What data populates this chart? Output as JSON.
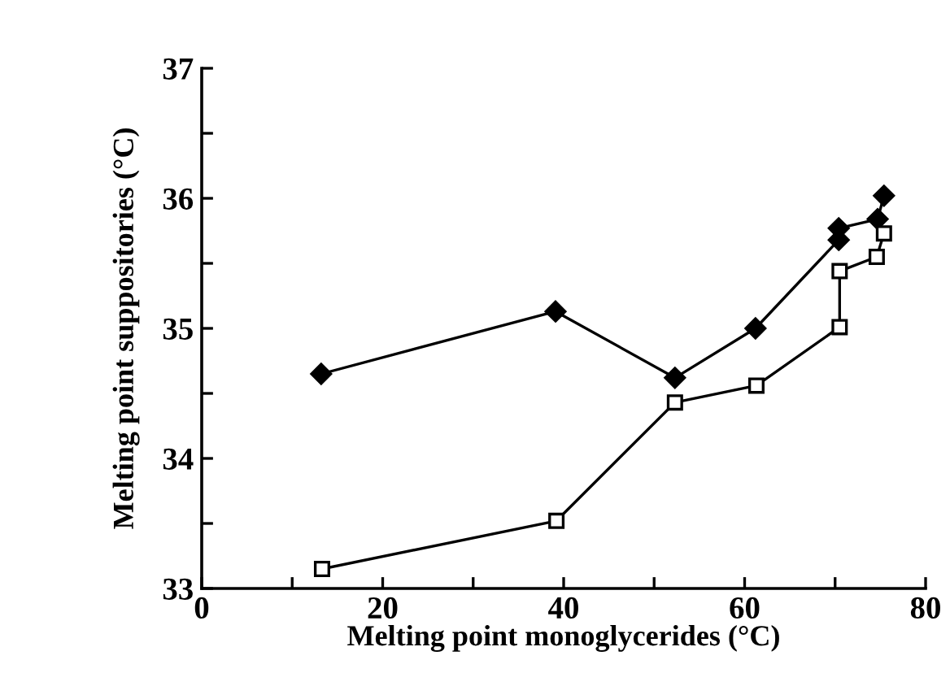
{
  "chart_data": {
    "type": "line",
    "xlabel": "Melting point monoglycerides (°C)",
    "ylabel": "Melting point suppositories (°C)",
    "xlim": [
      0,
      80
    ],
    "ylim": [
      33,
      37
    ],
    "xticks": [
      0,
      {
        "value": 10,
        "label": null
      },
      20,
      {
        "value": 30,
        "label": null
      },
      40,
      {
        "value": 50,
        "label": null
      },
      60,
      {
        "value": 70,
        "label": null
      },
      80
    ],
    "yticks": [
      33,
      {
        "value": 33.5,
        "label": null
      },
      34,
      {
        "value": 34.5,
        "label": null
      },
      35,
      {
        "value": 35.5,
        "label": null
      },
      36,
      {
        "value": 36.5,
        "label": null
      },
      37
    ],
    "grid": false,
    "line_style": "solid",
    "series": [
      {
        "color": "#000000",
        "marker": "diamond",
        "x": [
          13.2,
          39.1,
          52.3,
          61.2,
          70.4,
          70.4,
          74.7,
          75.4
        ],
        "values": [
          34.65,
          35.13,
          34.62,
          35.0,
          35.68,
          35.77,
          35.84,
          36.02
        ]
      },
      {
        "color": "#000000",
        "marker": "square",
        "x": [
          13.3,
          39.2,
          52.3,
          61.3,
          70.5,
          70.5,
          74.6,
          75.4
        ],
        "values": [
          33.15,
          33.52,
          34.43,
          34.56,
          35.01,
          35.44,
          35.55,
          35.73
        ]
      }
    ]
  }
}
